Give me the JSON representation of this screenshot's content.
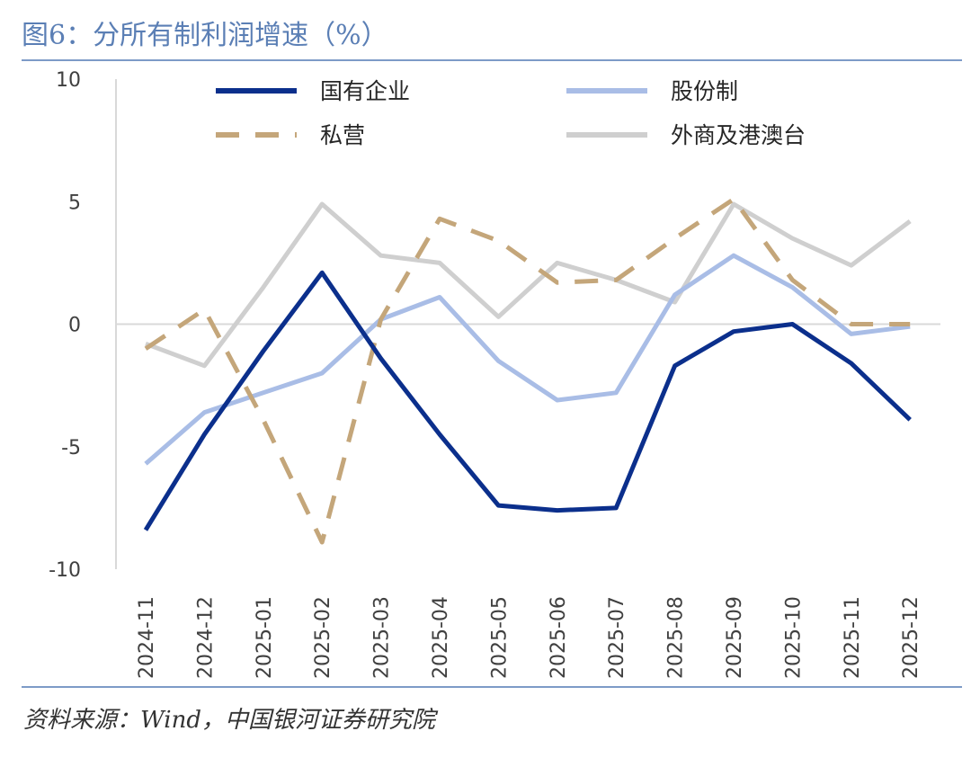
{
  "header": {
    "title": "图6：分所有制利润增速（%）"
  },
  "footer": {
    "source": "资料来源：Wind，中国银河证券研究院"
  },
  "chart_data": {
    "type": "line",
    "title": "图6：分所有制利润增速（%）",
    "unit": "%",
    "categories": [
      "2024-11",
      "2024-12",
      "2025-01",
      "2025-02",
      "2025-03",
      "2025-04",
      "2025-05",
      "2025-06",
      "2025-07",
      "2025-08",
      "2025-09",
      "2025-10",
      "2025-11",
      "2025-12"
    ],
    "ylim": [
      -10,
      10
    ],
    "yticks": [
      "10",
      "5",
      "0",
      "-5",
      "-10"
    ],
    "ytick_values": [
      10,
      5,
      0,
      -5,
      -10
    ],
    "grid": false,
    "legend_position": "top",
    "series": [
      {
        "name": "国有企业",
        "color": "#0b2f8c",
        "dash": "solid",
        "values": [
          -8.4,
          -4.5,
          -1.1,
          2.1,
          -1.4,
          -4.5,
          -7.4,
          -7.6,
          -7.5,
          -1.7,
          -0.3,
          0.0,
          -1.6,
          -3.9
        ]
      },
      {
        "name": "股份制",
        "color": "#a9bde6",
        "dash": "solid",
        "values": [
          -5.7,
          -3.6,
          -2.8,
          -2.0,
          0.2,
          1.1,
          -1.5,
          -3.1,
          -2.8,
          1.2,
          2.8,
          1.5,
          -0.4,
          -0.1
        ]
      },
      {
        "name": "私营",
        "color": "#c4a67a",
        "dash": "dashed",
        "values": [
          -1.0,
          0.6,
          -3.9,
          -8.9,
          0.2,
          4.3,
          3.4,
          1.7,
          1.8,
          3.5,
          5.1,
          1.8,
          0.0,
          0.0
        ]
      },
      {
        "name": "外商及港澳台",
        "color": "#cfcfcf",
        "dash": "solid",
        "values": [
          -0.8,
          -1.7,
          1.5,
          4.9,
          2.8,
          2.5,
          0.3,
          2.5,
          1.8,
          0.9,
          4.9,
          3.5,
          2.4,
          4.2
        ]
      }
    ]
  }
}
